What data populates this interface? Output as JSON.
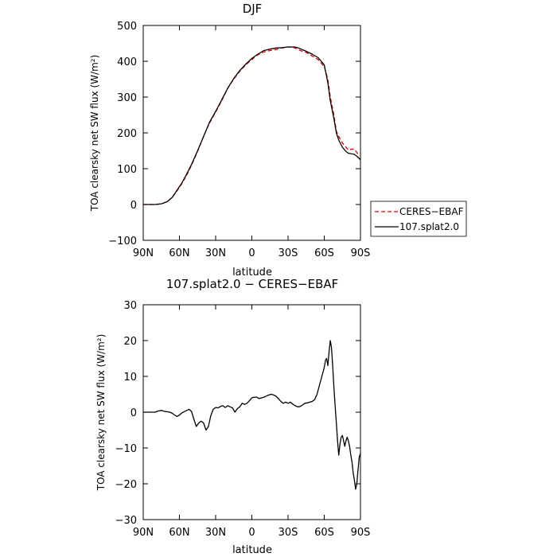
{
  "chart_data": [
    {
      "type": "line",
      "title": "DJF",
      "xlabel": "latitude",
      "ylabel": "TOA clearsky net SW flux (W/m²)",
      "xlim": [
        -90,
        90
      ],
      "ylim": [
        -100,
        500
      ],
      "x_ticks": [
        -90,
        -60,
        -30,
        0,
        30,
        60,
        90
      ],
      "x_tick_labels": [
        "90N",
        "60N",
        "30N",
        "0",
        "30S",
        "60S",
        "90S"
      ],
      "y_ticks": [
        -100,
        0,
        100,
        200,
        300,
        400,
        500
      ],
      "y_tick_labels": [
        "−100",
        "0",
        "100",
        "200",
        "300",
        "400",
        "500"
      ],
      "legend": "right",
      "series": [
        {
          "name": "CERES−EBAF",
          "color": "#e00000",
          "dash": "dashed",
          "x": [
            -90,
            -85,
            -80,
            -75,
            -70,
            -66,
            -62,
            -58,
            -54,
            -50,
            -45,
            -40,
            -35,
            -30,
            -25,
            -20,
            -15,
            -10,
            -5,
            0,
            5,
            10,
            15,
            20,
            25,
            30,
            35,
            38,
            40,
            45,
            50,
            55,
            60,
            63,
            65,
            68,
            70,
            72,
            75,
            78,
            80,
            82,
            85,
            88,
            90
          ],
          "y": [
            0,
            0,
            0,
            2,
            8,
            20,
            38,
            58,
            82,
            110,
            148,
            190,
            228,
            258,
            290,
            325,
            350,
            372,
            390,
            405,
            418,
            426,
            430,
            433,
            437,
            440,
            438,
            434,
            430,
            425,
            415,
            405,
            385,
            350,
            300,
            250,
            205,
            190,
            172,
            160,
            152,
            154,
            155,
            140,
            138
          ]
        },
        {
          "name": "107.splat2.0",
          "color": "#000000",
          "dash": "solid",
          "x": [
            -90,
            -85,
            -80,
            -75,
            -70,
            -66,
            -62,
            -58,
            -54,
            -50,
            -45,
            -40,
            -35,
            -30,
            -25,
            -20,
            -15,
            -10,
            -5,
            0,
            5,
            10,
            15,
            20,
            25,
            30,
            35,
            38,
            40,
            45,
            50,
            55,
            60,
            63,
            65,
            68,
            70,
            72,
            75,
            78,
            80,
            82,
            85,
            88,
            90
          ],
          "y": [
            0,
            0,
            0,
            2,
            8,
            20,
            40,
            60,
            85,
            112,
            150,
            190,
            230,
            260,
            292,
            325,
            352,
            374,
            392,
            408,
            420,
            430,
            434,
            437,
            438,
            440,
            440,
            438,
            435,
            428,
            420,
            410,
            390,
            340,
            290,
            240,
            200,
            180,
            160,
            148,
            143,
            142,
            140,
            132,
            125
          ]
        }
      ]
    },
    {
      "type": "line",
      "title": "107.splat2.0 − CERES−EBAF",
      "xlabel": "latitude",
      "ylabel": "TOA clearsky net SW flux (W/m²)",
      "xlim": [
        -90,
        90
      ],
      "ylim": [
        -30,
        30
      ],
      "x_ticks": [
        -90,
        -60,
        -30,
        0,
        30,
        60,
        90
      ],
      "x_tick_labels": [
        "90N",
        "60N",
        "30N",
        "0",
        "30S",
        "60S",
        "90S"
      ],
      "y_ticks": [
        -30,
        -20,
        -10,
        0,
        10,
        20,
        30
      ],
      "y_tick_labels": [
        "−30",
        "−20",
        "−10",
        "0",
        "10",
        "20",
        "30"
      ],
      "series": [
        {
          "color": "#000000",
          "dash": "solid",
          "x": [
            -90,
            -85,
            -80,
            -78,
            -75,
            -72,
            -70,
            -68,
            -66,
            -64,
            -62,
            -60,
            -58,
            -55,
            -52,
            -50,
            -48,
            -46,
            -44,
            -42,
            -40,
            -38,
            -36,
            -34,
            -32,
            -30,
            -28,
            -26,
            -24,
            -22,
            -20,
            -18,
            -16,
            -14,
            -12,
            -10,
            -8,
            -6,
            -4,
            -2,
            0,
            2,
            4,
            6,
            8,
            10,
            12,
            14,
            16,
            18,
            20,
            22,
            24,
            26,
            28,
            30,
            32,
            34,
            36,
            38,
            40,
            42,
            44,
            46,
            48,
            50,
            52,
            54,
            56,
            58,
            60,
            61,
            62,
            63,
            64,
            65,
            66,
            67,
            68,
            69,
            70,
            71,
            72,
            73,
            74,
            75,
            76,
            77,
            78,
            79,
            80,
            81,
            82,
            83,
            84,
            85,
            86,
            87,
            88,
            89,
            90
          ],
          "y": [
            0,
            0,
            0,
            0.3,
            0.5,
            0.2,
            0.1,
            0,
            -0.3,
            -0.8,
            -1.2,
            -0.8,
            -0.2,
            0.3,
            0.8,
            0.2,
            -2,
            -4,
            -3,
            -2.5,
            -3,
            -5,
            -4,
            -1,
            0.8,
            1.3,
            1.2,
            1.6,
            1.8,
            1.3,
            1.8,
            1.5,
            1.2,
            0,
            1,
            1.5,
            2.5,
            2.2,
            2.5,
            3.2,
            4,
            4.2,
            4.2,
            3.8,
            4,
            4.2,
            4.5,
            4.8,
            5,
            4.8,
            4.5,
            3.8,
            3,
            2.5,
            2.8,
            2.5,
            2.8,
            2.2,
            1.8,
            1.5,
            1.6,
            2,
            2.5,
            2.6,
            2.8,
            3,
            3.5,
            5,
            7.5,
            10,
            12.5,
            14.5,
            15,
            13,
            17,
            20,
            18,
            13,
            7,
            2,
            -3,
            -8,
            -12,
            -9,
            -7,
            -6.5,
            -8,
            -9.5,
            -8,
            -7,
            -8,
            -9.5,
            -12,
            -14,
            -17,
            -19,
            -21.5,
            -20,
            -16,
            -12.5,
            -11.5
          ]
        }
      ]
    }
  ]
}
